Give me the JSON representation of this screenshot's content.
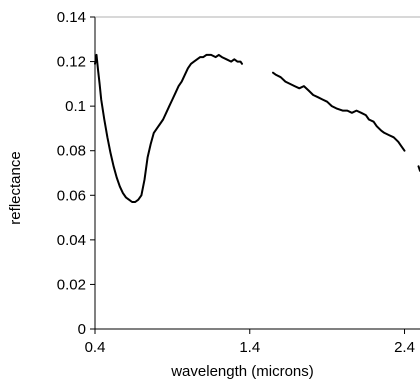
{
  "chart_data": {
    "type": "line",
    "title": "",
    "xlabel": "wavelength (microns)",
    "ylabel": "reflectance",
    "xlim": [
      0.4,
      2.5
    ],
    "ylim": [
      0,
      0.14
    ],
    "x_ticks": [
      0.4,
      1.4,
      2.4
    ],
    "x_tick_labels": [
      "0.4",
      "1.4",
      "2.4"
    ],
    "y_ticks": [
      0,
      0.02,
      0.04,
      0.06,
      0.08,
      0.1,
      0.12,
      0.14
    ],
    "y_tick_labels": [
      "0",
      "0.02",
      "0.04",
      "0.06",
      "0.08",
      "0.1",
      "0.12",
      "0.14"
    ],
    "grid": false,
    "legend": "none",
    "line_color": "#000000",
    "series": [
      {
        "segments": [
          [
            [
              0.4,
              0.119
            ],
            [
              0.41,
              0.123
            ],
            [
              0.42,
              0.116
            ],
            [
              0.43,
              0.11
            ],
            [
              0.44,
              0.103
            ],
            [
              0.46,
              0.094
            ],
            [
              0.48,
              0.086
            ],
            [
              0.5,
              0.079
            ],
            [
              0.52,
              0.073
            ],
            [
              0.54,
              0.068
            ],
            [
              0.56,
              0.064
            ],
            [
              0.58,
              0.061
            ],
            [
              0.6,
              0.059
            ],
            [
              0.62,
              0.058
            ],
            [
              0.64,
              0.057
            ],
            [
              0.66,
              0.057
            ],
            [
              0.68,
              0.058
            ],
            [
              0.7,
              0.06
            ],
            [
              0.72,
              0.067
            ],
            [
              0.74,
              0.077
            ],
            [
              0.76,
              0.083
            ],
            [
              0.78,
              0.088
            ],
            [
              0.8,
              0.09
            ],
            [
              0.82,
              0.092
            ],
            [
              0.84,
              0.094
            ],
            [
              0.86,
              0.097
            ],
            [
              0.88,
              0.1
            ],
            [
              0.9,
              0.103
            ],
            [
              0.92,
              0.106
            ],
            [
              0.94,
              0.109
            ],
            [
              0.96,
              0.111
            ],
            [
              0.98,
              0.114
            ],
            [
              1.0,
              0.117
            ],
            [
              1.02,
              0.119
            ],
            [
              1.04,
              0.12
            ],
            [
              1.06,
              0.121
            ],
            [
              1.08,
              0.122
            ],
            [
              1.1,
              0.122
            ],
            [
              1.12,
              0.123
            ],
            [
              1.15,
              0.123
            ],
            [
              1.18,
              0.122
            ],
            [
              1.2,
              0.123
            ],
            [
              1.22,
              0.122
            ],
            [
              1.25,
              0.121
            ],
            [
              1.28,
              0.12
            ],
            [
              1.3,
              0.121
            ],
            [
              1.32,
              0.12
            ],
            [
              1.34,
              0.12
            ],
            [
              1.35,
              0.119
            ]
          ],
          [
            [
              1.55,
              0.115
            ],
            [
              1.57,
              0.114
            ],
            [
              1.6,
              0.113
            ],
            [
              1.63,
              0.111
            ],
            [
              1.66,
              0.11
            ],
            [
              1.69,
              0.109
            ],
            [
              1.72,
              0.108
            ],
            [
              1.75,
              0.109
            ],
            [
              1.78,
              0.107
            ],
            [
              1.81,
              0.105
            ],
            [
              1.84,
              0.104
            ],
            [
              1.87,
              0.103
            ],
            [
              1.9,
              0.102
            ],
            [
              1.93,
              0.1
            ],
            [
              1.96,
              0.099
            ],
            [
              2.0,
              0.098
            ],
            [
              2.03,
              0.098
            ],
            [
              2.06,
              0.097
            ],
            [
              2.09,
              0.098
            ],
            [
              2.12,
              0.097
            ],
            [
              2.15,
              0.096
            ],
            [
              2.17,
              0.094
            ],
            [
              2.2,
              0.093
            ],
            [
              2.22,
              0.091
            ],
            [
              2.25,
              0.089
            ],
            [
              2.27,
              0.088
            ],
            [
              2.3,
              0.087
            ],
            [
              2.33,
              0.086
            ],
            [
              2.36,
              0.084
            ],
            [
              2.38,
              0.082
            ],
            [
              2.4,
              0.08
            ]
          ],
          [
            [
              2.49,
              0.073
            ],
            [
              2.5,
              0.071
            ]
          ]
        ]
      }
    ]
  }
}
